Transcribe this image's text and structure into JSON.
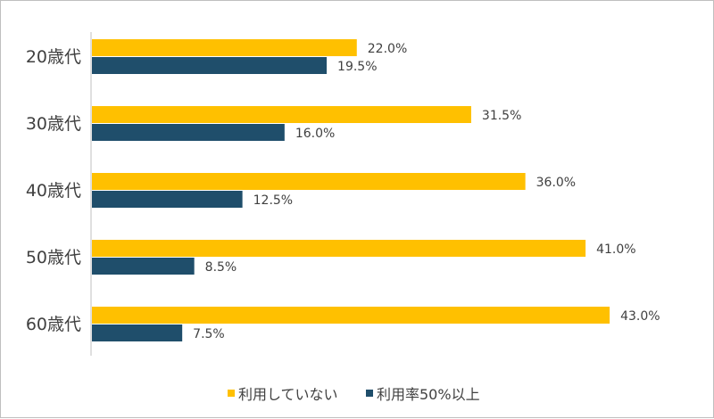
{
  "chart_data": {
    "type": "bar",
    "orientation": "horizontal",
    "categories": [
      "20歳代",
      "30歳代",
      "40歳代",
      "50歳代",
      "60歳代"
    ],
    "series": [
      {
        "name": "利用していない",
        "color": "#FFC000",
        "values": [
          22.0,
          31.5,
          36.0,
          41.0,
          43.0
        ],
        "labels": [
          "22.0%",
          "31.5%",
          "36.0%",
          "41.0%",
          "43.0%"
        ]
      },
      {
        "name": "利用率50%以上",
        "color": "#1F4E6B",
        "values": [
          19.5,
          16.0,
          12.5,
          8.5,
          7.5
        ],
        "labels": [
          "19.5%",
          "16.0%",
          "12.5%",
          "8.5%",
          "7.5%"
        ]
      }
    ],
    "xlim": [
      0,
      50
    ],
    "grid": false,
    "legend": "bottom",
    "title": "",
    "xlabel": "",
    "ylabel": ""
  }
}
